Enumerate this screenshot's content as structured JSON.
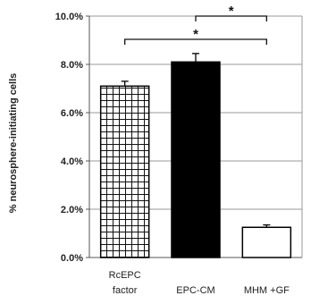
{
  "chart_data": {
    "type": "bar",
    "ylabel": "% neurosphere-initiating cells",
    "ylim": [
      0,
      10
    ],
    "yticks": [
      "0.0%",
      "2.0%",
      "4.0%",
      "6.0%",
      "8.0%",
      "10.0%"
    ],
    "categories": [
      [
        "RcEPC",
        "factor"
      ],
      [
        "EPC-CM"
      ],
      [
        "MHM +GF"
      ]
    ],
    "values": [
      7.1,
      8.1,
      1.25
    ],
    "errors": [
      0.2,
      0.35,
      0.1
    ],
    "fills": [
      "grid",
      "solid-black",
      "white"
    ],
    "grid": true,
    "significance": [
      {
        "from": 1,
        "to": 2,
        "label": "*"
      },
      {
        "from": 0,
        "to": 2,
        "label": "*"
      }
    ]
  }
}
